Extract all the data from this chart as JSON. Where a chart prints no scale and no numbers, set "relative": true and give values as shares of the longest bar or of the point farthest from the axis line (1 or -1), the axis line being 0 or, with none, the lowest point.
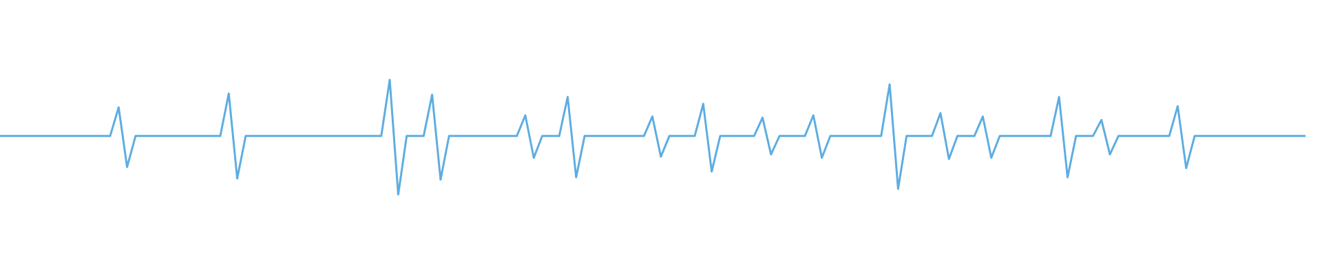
{
  "chart_data": {
    "type": "line",
    "relative": true,
    "marker": "none",
    "categories": [
      null,
      null,
      null,
      null,
      null,
      null,
      null,
      null,
      null,
      null,
      null,
      null,
      null,
      null,
      null,
      null,
      null,
      null,
      null,
      null,
      null,
      null,
      null,
      null,
      null,
      null,
      null,
      null,
      null,
      null,
      null,
      null,
      null,
      null,
      null,
      null,
      null,
      null,
      null,
      null,
      null,
      null,
      null,
      null,
      null,
      null,
      null,
      null,
      null,
      null,
      null,
      null,
      null,
      null,
      null,
      null,
      null,
      null,
      null,
      null,
      null,
      null,
      null,
      null,
      null,
      null,
      null,
      null,
      null,
      null,
      null,
      null,
      null,
      null,
      null,
      null,
      null,
      null,
      null,
      null,
      null,
      null,
      null,
      null,
      null,
      null,
      null,
      null,
      null,
      null,
      null,
      null,
      null,
      null,
      null,
      null,
      null,
      null,
      null,
      null,
      null,
      null,
      null,
      null,
      null,
      null,
      null,
      null,
      null,
      null,
      null,
      null,
      null,
      null,
      null,
      null,
      null,
      null,
      null,
      null,
      null,
      null,
      null,
      null,
      null,
      null,
      null,
      null,
      null,
      null,
      null,
      null,
      null,
      null,
      null,
      null,
      null,
      null,
      null,
      null,
      null,
      null,
      null,
      null,
      null,
      null,
      null,
      null,
      null,
      null,
      null,
      null,
      null,
      null,
      null
    ],
    "series": [
      {
        "color": "#5dade2",
        "values": [
          0.51,
          0.51,
          0.51,
          0.51,
          0.51,
          0.51,
          0.51,
          0.51,
          0.51,
          0.51,
          0.51,
          0.51,
          0.51,
          0.51,
          0.76,
          0.24,
          0.51,
          0.51,
          0.51,
          0.51,
          0.51,
          0.51,
          0.51,
          0.51,
          0.51,
          0.51,
          0.51,
          0.88,
          0.14,
          0.51,
          0.51,
          0.51,
          0.51,
          0.51,
          0.51,
          0.51,
          0.51,
          0.51,
          0.51,
          0.51,
          0.51,
          0.51,
          0.51,
          0.51,
          0.51,
          0.51,
          1,
          0,
          0.51,
          0.51,
          0.51,
          0.87,
          0.13,
          0.51,
          0.51,
          0.51,
          0.51,
          0.51,
          0.51,
          0.51,
          0.51,
          0.51,
          0.69,
          0.32,
          0.51,
          0.51,
          0.51,
          0.85,
          0.15,
          0.51,
          0.51,
          0.51,
          0.51,
          0.51,
          0.51,
          0.51,
          0.51,
          0.68,
          0.33,
          0.51,
          0.51,
          0.51,
          0.51,
          0.79,
          0.2,
          0.51,
          0.51,
          0.51,
          0.51,
          0.51,
          0.67,
          0.35,
          0.51,
          0.51,
          0.51,
          0.51,
          0.69,
          0.32,
          0.51,
          0.51,
          0.51,
          0.51,
          0.51,
          0.51,
          0.51,
          0.96,
          0.05,
          0.51,
          0.51,
          0.51,
          0.51,
          0.71,
          0.31,
          0.51,
          0.51,
          0.51,
          0.68,
          0.32,
          0.51,
          0.51,
          0.51,
          0.51,
          0.51,
          0.51,
          0.51,
          0.85,
          0.15,
          0.51,
          0.51,
          0.51,
          0.65,
          0.35,
          0.51,
          0.51,
          0.51,
          0.51,
          0.51,
          0.51,
          0.51,
          0.77,
          0.23,
          0.51,
          0.51,
          0.51,
          0.51,
          0.51,
          0.51,
          0.51,
          0.51,
          0.51,
          0.51,
          0.51,
          0.51,
          0.51,
          0.51
        ]
      }
    ]
  }
}
